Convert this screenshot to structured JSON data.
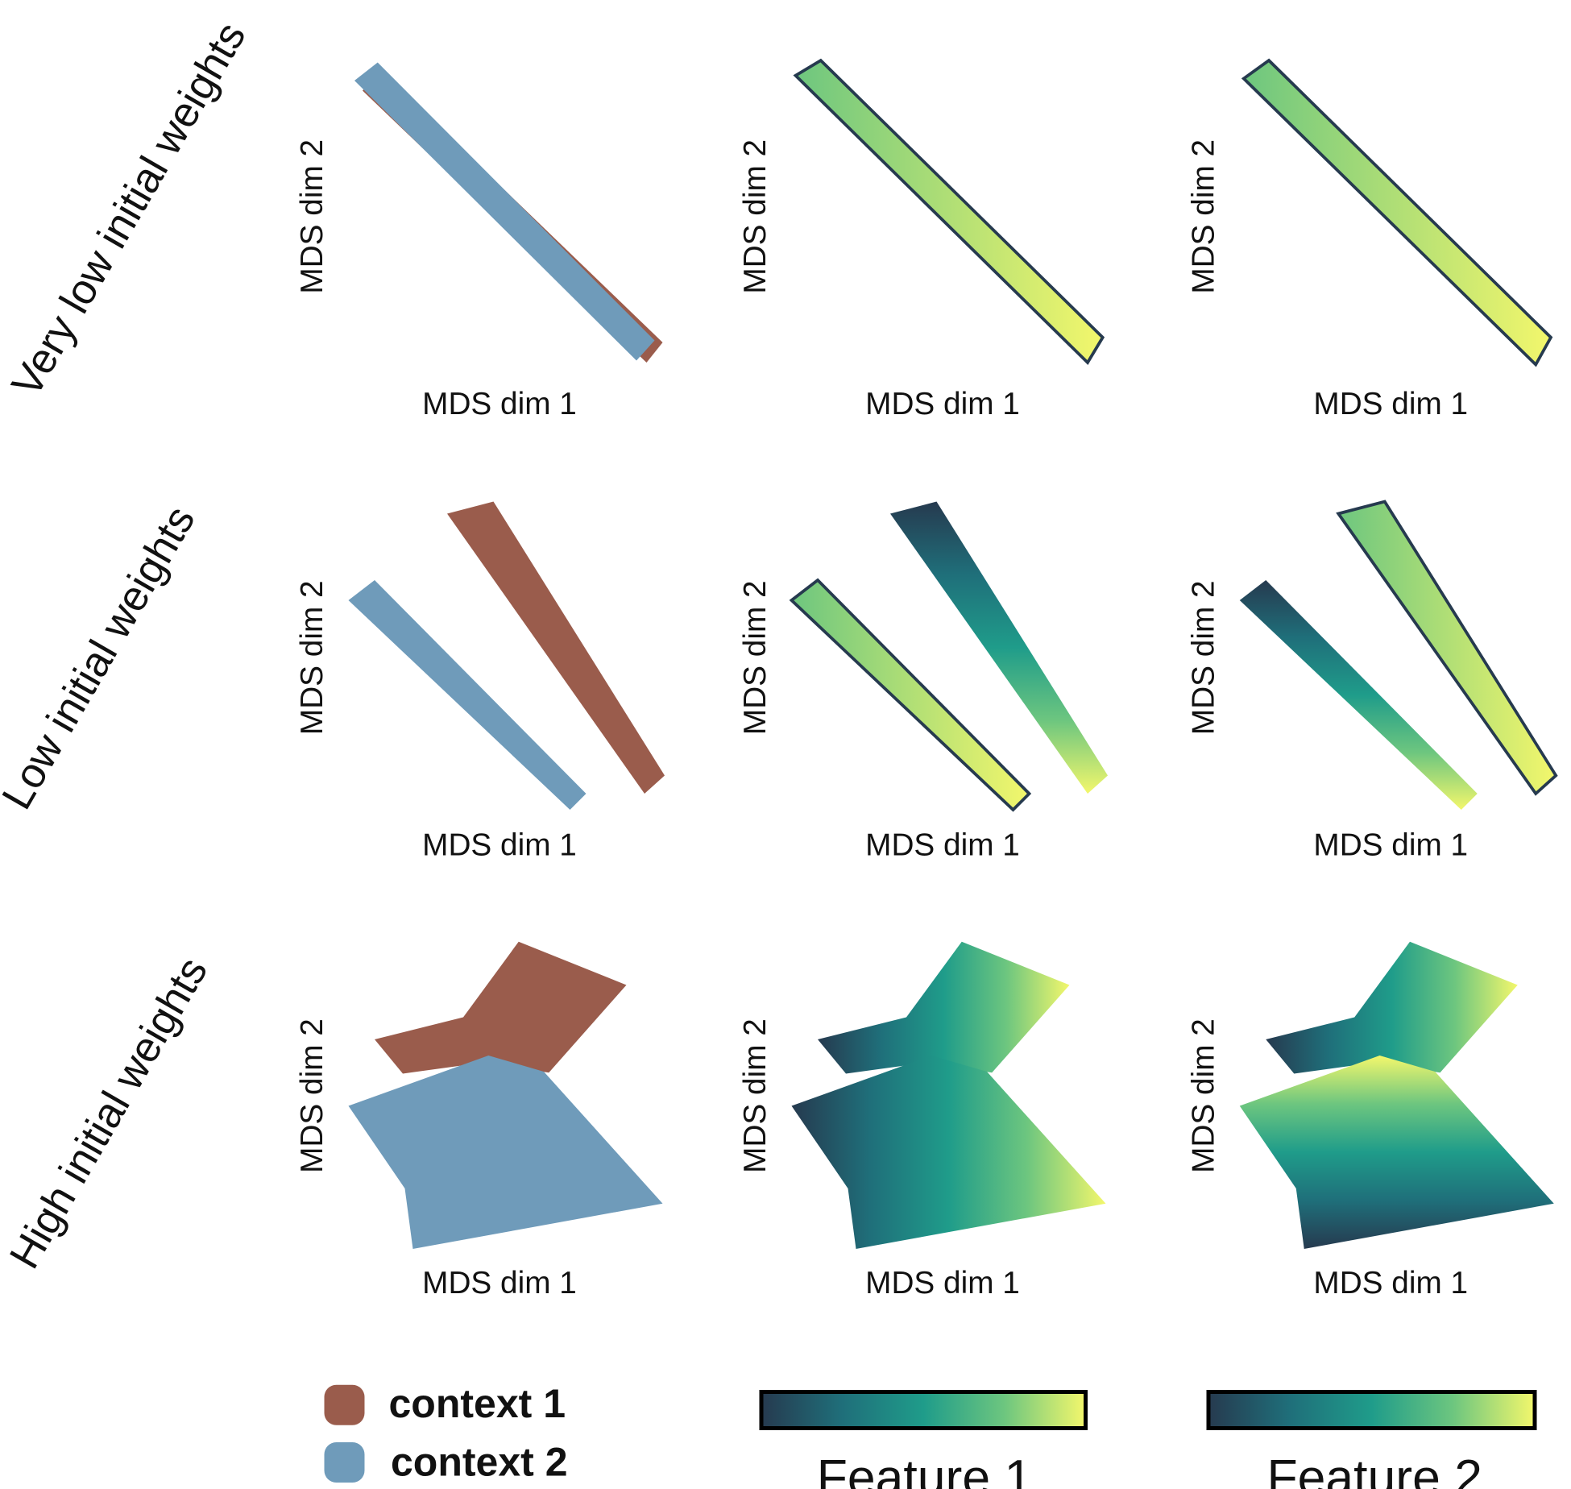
{
  "rows": [
    {
      "label": "Very low initial weights",
      "panels": [
        {
          "xlabel": "MDS dim 1",
          "ylabel": "MDS dim 2"
        },
        {
          "xlabel": "MDS dim 1",
          "ylabel": "MDS dim 2"
        },
        {
          "xlabel": "MDS dim 1",
          "ylabel": "MDS dim 2"
        }
      ]
    },
    {
      "label": "Low initial weights",
      "panels": [
        {
          "xlabel": "MDS dim 1",
          "ylabel": "MDS dim 2"
        },
        {
          "xlabel": "MDS dim 1",
          "ylabel": "MDS dim 2"
        },
        {
          "xlabel": "MDS dim 1",
          "ylabel": "MDS dim 2"
        }
      ]
    },
    {
      "label": "High initial weights",
      "panels": [
        {
          "xlabel": "MDS dim 1",
          "ylabel": "MDS dim 2"
        },
        {
          "xlabel": "MDS dim 1",
          "ylabel": "MDS dim 2"
        },
        {
          "xlabel": "MDS dim 1",
          "ylabel": "MDS dim 2"
        }
      ]
    }
  ],
  "legend": [
    {
      "name": "context 1",
      "color": "#9a5c4c"
    },
    {
      "name": "context 2",
      "color": "#6f9bba"
    }
  ],
  "colormap": [
    "#263a4f",
    "#1f6f7a",
    "#1f9c8a",
    "#6dc67f",
    "#f3f76c"
  ],
  "colorbars": [
    {
      "label": "Feature 1"
    },
    {
      "label": "Feature 2"
    }
  ]
}
